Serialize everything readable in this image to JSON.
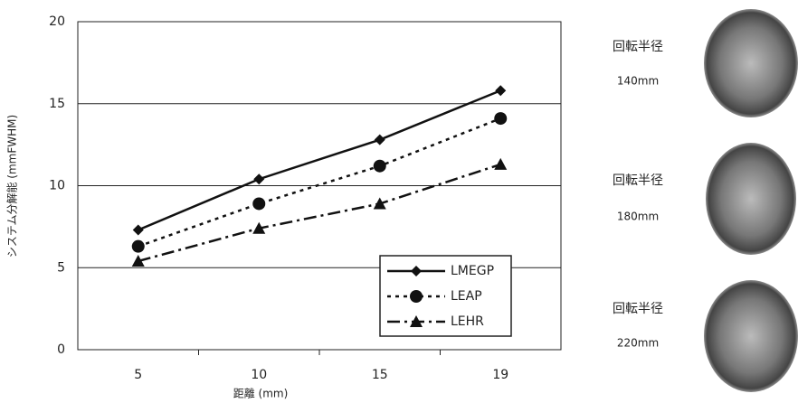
{
  "chart_data": {
    "type": "line",
    "x_label": "距離 (mm)",
    "y_label": "システム分解能 (mmFWHM)",
    "categories": [
      "5",
      "10",
      "15",
      "19"
    ],
    "series": [
      {
        "name": "LMEGP",
        "color": "#111111",
        "marker": "diamond",
        "line_style": "solid",
        "values": [
          7.3,
          10.4,
          12.8,
          15.8
        ]
      },
      {
        "name": "LEAP",
        "color": "#111111",
        "marker": "circle",
        "line_style": "dotted",
        "values": [
          6.3,
          8.9,
          11.2,
          14.1
        ]
      },
      {
        "name": "LEHR",
        "color": "#111111",
        "marker": "triangle",
        "line_style": "dashdot",
        "values": [
          5.4,
          7.4,
          8.9,
          11.3
        ]
      }
    ],
    "ylim": [
      0,
      20
    ],
    "yticks": [
      0,
      5,
      10,
      15,
      20
    ],
    "grid": true,
    "legend": "lower right"
  },
  "panels": [
    {
      "label": "回転半径",
      "radius": "140mm"
    },
    {
      "label": "回転半径",
      "radius": "180mm"
    },
    {
      "label": "回転半径",
      "radius": "220mm"
    }
  ]
}
